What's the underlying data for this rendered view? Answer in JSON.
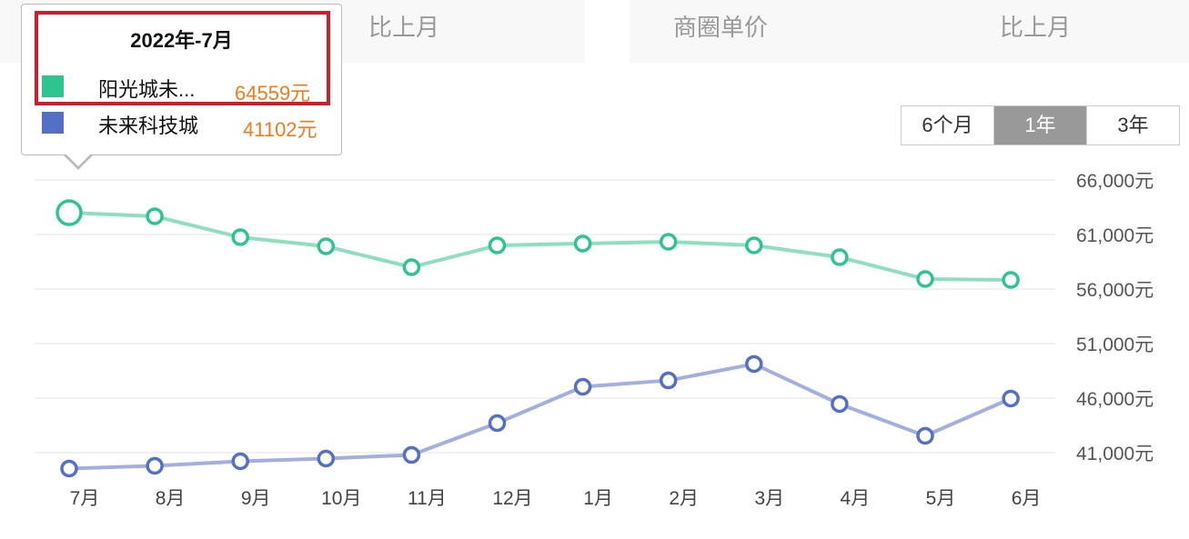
{
  "header": {
    "cards": [
      {
        "labels": [
          "比上月"
        ]
      },
      {
        "labels": [
          "商圈单价",
          "比上月"
        ]
      }
    ]
  },
  "range_selector": {
    "options": [
      "6个月",
      "1年",
      "3年"
    ],
    "active": "1年"
  },
  "tooltip": {
    "title": "2022年-7月",
    "rows": [
      {
        "name": "阳光城未...",
        "value": "64559元",
        "color": "#2ec48f"
      },
      {
        "name": "未来科技城",
        "value": "41102元",
        "color": "#5470c6"
      }
    ]
  },
  "chart_data": {
    "type": "line",
    "title": "",
    "xlabel": "",
    "ylabel": "",
    "categories": [
      "7月",
      "8月",
      "9月",
      "10月",
      "11月",
      "12月",
      "1月",
      "2月",
      "3月",
      "4月",
      "5月",
      "6月"
    ],
    "y_ticks": [
      "66,000元",
      "61,000元",
      "56,000元",
      "51,000元",
      "46,000元",
      "41,000元"
    ],
    "ylim": [
      41000,
      66000
    ],
    "grid": true,
    "legend_position": "tooltip",
    "series": [
      {
        "name": "阳光城未来...",
        "color": "#2ec48f",
        "line_color": "#8fdfbf",
        "values": [
          64559,
          64230,
          62310,
          61480,
          59560,
          61560,
          61730,
          61890,
          61560,
          60480,
          58480,
          58390
        ]
      },
      {
        "name": "未来科技城",
        "color": "#5470c6",
        "line_color": "#a3b0de",
        "values": [
          41102,
          41350,
          41770,
          42020,
          42350,
          45270,
          48600,
          49180,
          50690,
          47020,
          44100,
          47520
        ]
      }
    ]
  }
}
